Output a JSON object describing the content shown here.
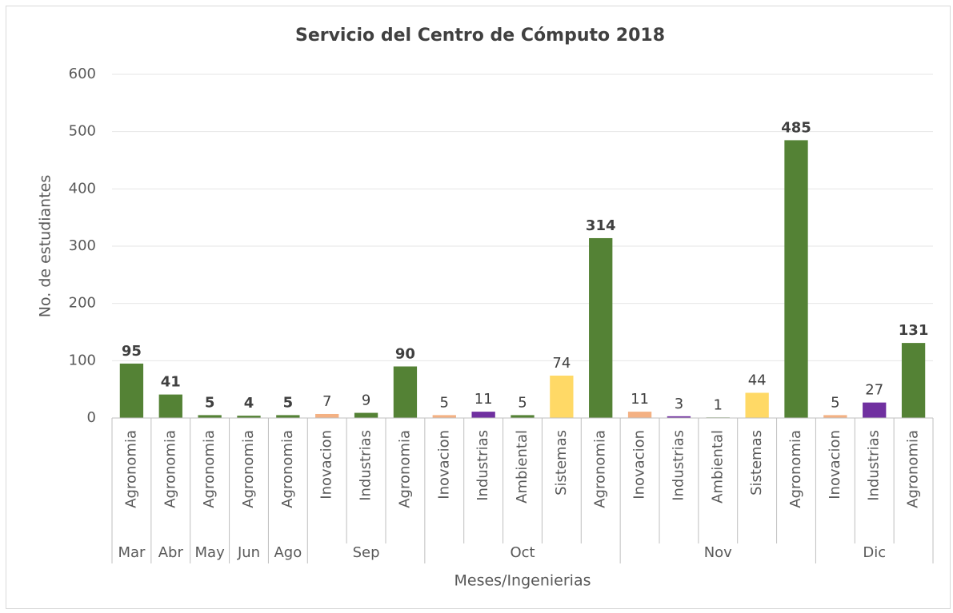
{
  "chart_data": {
    "type": "bar",
    "title": "Servicio del Centro de Cómputo 2018",
    "xlabel": "Meses/Ingenierias",
    "ylabel": "No. de estudiantes",
    "ylim": [
      0,
      600
    ],
    "yticks": [
      0,
      100,
      200,
      300,
      400,
      500,
      600
    ],
    "grid": true,
    "groups": [
      {
        "name": "Mar",
        "categories": [
          "Agronomia"
        ],
        "values": [
          95
        ],
        "colors": [
          "#548235"
        ],
        "bold": [
          true
        ]
      },
      {
        "name": "Abr",
        "categories": [
          "Agronomia"
        ],
        "values": [
          41
        ],
        "colors": [
          "#548235"
        ],
        "bold": [
          true
        ]
      },
      {
        "name": "May",
        "categories": [
          "Agronomia"
        ],
        "values": [
          5
        ],
        "colors": [
          "#548235"
        ],
        "bold": [
          true
        ]
      },
      {
        "name": "Jun",
        "categories": [
          "Agronomia"
        ],
        "values": [
          4
        ],
        "colors": [
          "#548235"
        ],
        "bold": [
          true
        ]
      },
      {
        "name": "Ago",
        "categories": [
          "Agronomia"
        ],
        "values": [
          5
        ],
        "colors": [
          "#548235"
        ],
        "bold": [
          true
        ]
      },
      {
        "name": "Sep",
        "categories": [
          "Inovacion",
          "Industrias",
          "Agronomia"
        ],
        "values": [
          7,
          9,
          90
        ],
        "colors": [
          "#f4b183",
          "#548235",
          "#548235"
        ],
        "bold": [
          false,
          false,
          true
        ]
      },
      {
        "name": "Oct",
        "categories": [
          "Inovacion",
          "Industrias",
          "Ambiental",
          "Sistemas",
          "Agronomia"
        ],
        "values": [
          5,
          11,
          5,
          74,
          314
        ],
        "colors": [
          "#f4b183",
          "#7030a0",
          "#548235",
          "#ffd966",
          "#548235"
        ],
        "bold": [
          false,
          false,
          false,
          false,
          true
        ]
      },
      {
        "name": "Nov",
        "categories": [
          "Inovacion",
          "Industrias",
          "Ambiental",
          "Sistemas",
          "Agronomia"
        ],
        "values": [
          11,
          3,
          1,
          44,
          485
        ],
        "colors": [
          "#f4b183",
          "#7030a0",
          "#548235",
          "#ffd966",
          "#548235"
        ],
        "bold": [
          false,
          false,
          false,
          false,
          true
        ]
      },
      {
        "name": "Dic",
        "categories": [
          "Inovacion",
          "Industrias",
          "Agronomia"
        ],
        "values": [
          5,
          27,
          131
        ],
        "colors": [
          "#f4b183",
          "#7030a0",
          "#548235"
        ],
        "bold": [
          false,
          false,
          true
        ]
      }
    ]
  }
}
